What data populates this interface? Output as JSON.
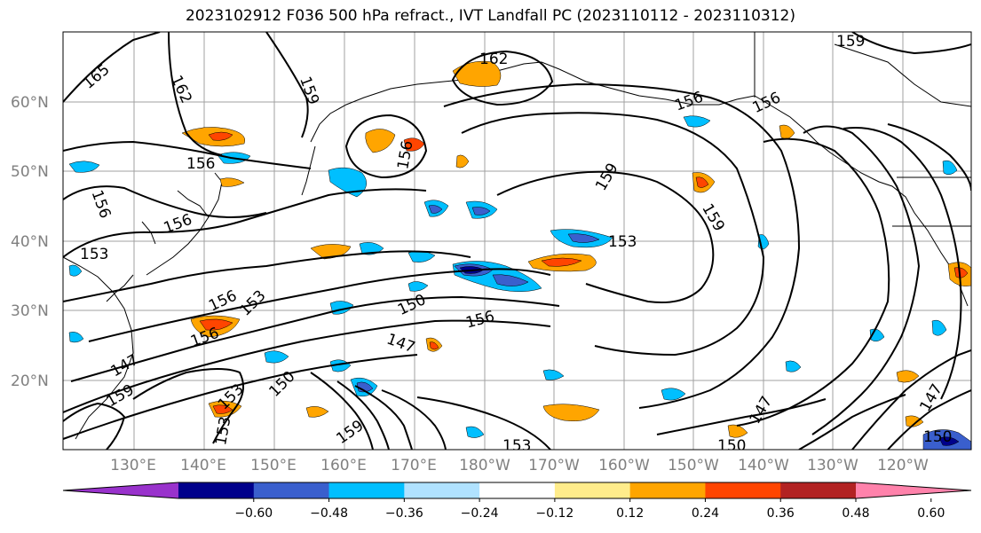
{
  "title": "2023102912 F036 500 hPa refract., IVT Landfall PC (2023110112 - 2023110312)",
  "lat_labels": [
    "60°N",
    "50°N",
    "40°N",
    "30°N",
    "20°N"
  ],
  "lon_labels": [
    "130°E",
    "140°E",
    "150°E",
    "160°E",
    "170°E",
    "180°W",
    "170°W",
    "160°W",
    "150°W",
    "140°W",
    "130°W",
    "120°W"
  ],
  "contour_labels": [
    "165",
    "162",
    "159",
    "162",
    "156",
    "156",
    "156",
    "156",
    "153",
    "156",
    "153",
    "156",
    "159",
    "159",
    "153",
    "150",
    "156",
    "147",
    "147",
    "159",
    "156",
    "153",
    "153",
    "150",
    "159",
    "153",
    "147",
    "150",
    "147",
    "150",
    "156",
    "159"
  ],
  "colorbar": {
    "ticks": [
      "−0.60",
      "−0.48",
      "−0.36",
      "−0.24",
      "−0.12",
      "0.12",
      "0.24",
      "0.36",
      "0.48",
      "0.60"
    ],
    "colors": [
      "#9932cc",
      "#00008b",
      "#3a5fcd",
      "#00bfff",
      "#b0e2ff",
      "#ffffff",
      "#ffec8b",
      "#ffa500",
      "#ff4500",
      "#b22222",
      "#ff82ab"
    ]
  }
}
